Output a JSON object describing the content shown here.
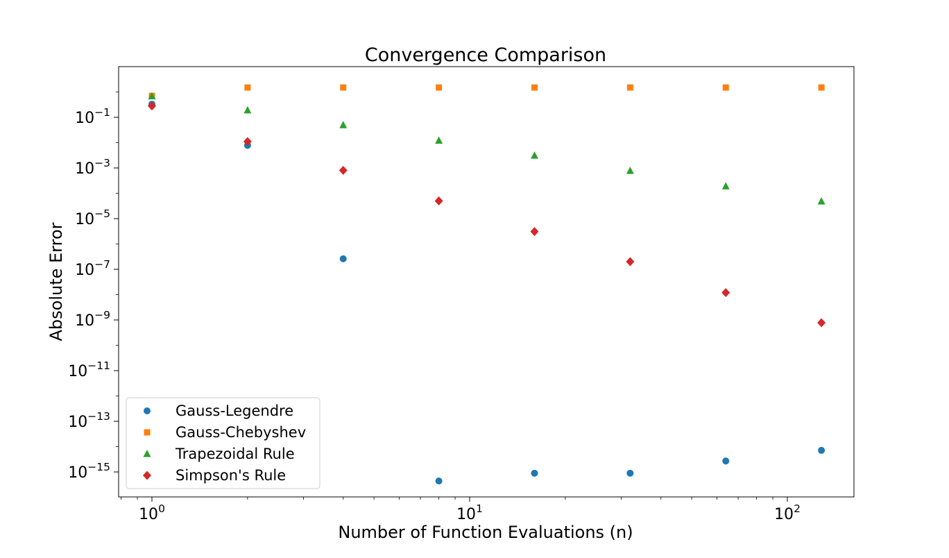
{
  "chart_data": {
    "type": "scatter",
    "title": "Convergence Comparison",
    "xlabel": "Number of Function Evaluations (n)",
    "ylabel": "Absolute Error",
    "xscale": "log",
    "yscale": "log",
    "xlim": [
      0.8,
      160
    ],
    "ylim": [
      2e-16,
      5
    ],
    "grid": false,
    "legend_position": "lower-left",
    "x_ticks": [
      {
        "base": "10",
        "exp": "0",
        "value": 1
      },
      {
        "base": "10",
        "exp": "1",
        "value": 10
      },
      {
        "base": "10",
        "exp": "2",
        "value": 100
      }
    ],
    "y_ticks": [
      {
        "base": "10",
        "exp": "−1",
        "value": 0.1
      },
      {
        "base": "10",
        "exp": "−3",
        "value": 0.001
      },
      {
        "base": "10",
        "exp": "−5",
        "value": 1e-05
      },
      {
        "base": "10",
        "exp": "−7",
        "value": 1e-07
      },
      {
        "base": "10",
        "exp": "−9",
        "value": 1e-09
      },
      {
        "base": "10",
        "exp": "−11",
        "value": 1e-11
      },
      {
        "base": "10",
        "exp": "−13",
        "value": 1e-13
      },
      {
        "base": "10",
        "exp": "−15",
        "value": 1e-15
      }
    ],
    "x": [
      1,
      2,
      4,
      8,
      16,
      32,
      64,
      128
    ],
    "series": [
      {
        "name": "Gauss-Legendre",
        "marker": "circle",
        "color": "#1f77b4",
        "values": [
          0.33,
          0.0078,
          2.6e-07,
          null,
          null,
          null,
          null,
          null
        ],
        "points": [
          [
            1,
            0.33
          ],
          [
            2,
            0.0078
          ],
          [
            4,
            2.6e-07
          ],
          [
            8,
            4.4e-16
          ],
          [
            16,
            8.9e-16
          ],
          [
            32,
            8.9e-16
          ],
          [
            64,
            2.7e-15
          ],
          [
            128,
            7.1e-15
          ]
        ]
      },
      {
        "name": "Gauss-Chebyshev",
        "marker": "square",
        "color": "#ff7f0e",
        "points": [
          [
            1,
            0.7
          ],
          [
            2,
            1.5
          ],
          [
            4,
            1.5
          ],
          [
            8,
            1.5
          ],
          [
            16,
            1.5
          ],
          [
            32,
            1.5
          ],
          [
            64,
            1.5
          ],
          [
            128,
            1.5
          ]
        ]
      },
      {
        "name": "Trapezoidal Rule",
        "marker": "triangle",
        "color": "#2ca02c",
        "points": [
          [
            1,
            0.68
          ],
          [
            2,
            0.19
          ],
          [
            4,
            0.049
          ],
          [
            8,
            0.012
          ],
          [
            16,
            0.0031
          ],
          [
            32,
            0.00077
          ],
          [
            64,
            0.00019
          ],
          [
            128,
            4.8e-05
          ]
        ]
      },
      {
        "name": "Simpson's Rule",
        "marker": "diamond",
        "color": "#d62728",
        "points": [
          [
            1,
            0.28
          ],
          [
            2,
            0.011
          ],
          [
            4,
            0.0008
          ],
          [
            8,
            5e-05
          ],
          [
            16,
            3.1e-06
          ],
          [
            32,
            2e-07
          ],
          [
            64,
            1.2e-08
          ],
          [
            128,
            7.8e-10
          ]
        ]
      }
    ]
  }
}
